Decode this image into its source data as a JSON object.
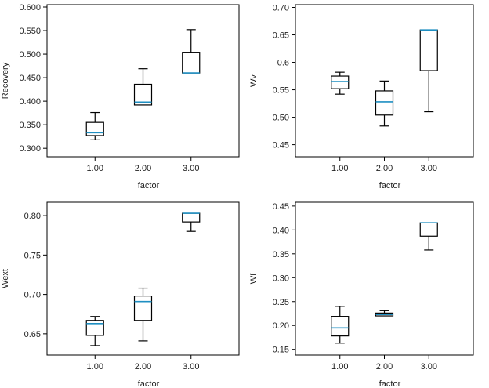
{
  "colors": {
    "median": "#1f8fc2",
    "frame": "#000000",
    "whisker": "#000000",
    "text": "#222222"
  },
  "chart_data": [
    {
      "type": "boxplot",
      "ylabel": "Recovery",
      "xlabel": "factor",
      "categories": [
        "1.00",
        "2.00",
        "3.00"
      ],
      "ylim": [
        0.282,
        0.605
      ],
      "yticks": [
        0.3,
        0.35,
        0.4,
        0.45,
        0.5,
        0.55,
        0.6
      ],
      "ytick_labels": [
        "0.300",
        "0.350",
        "0.400",
        "0.450",
        "0.500",
        "0.550",
        "0.600"
      ],
      "boxes": [
        {
          "min": 0.318,
          "q1": 0.327,
          "median": 0.333,
          "q3": 0.355,
          "max": 0.376
        },
        {
          "min": 0.392,
          "q1": 0.392,
          "median": 0.398,
          "q3": 0.436,
          "max": 0.469
        },
        {
          "min": 0.46,
          "q1": 0.46,
          "median": 0.46,
          "q3": 0.504,
          "max": 0.552
        }
      ]
    },
    {
      "type": "boxplot",
      "ylabel": "Wv",
      "xlabel": "factor",
      "categories": [
        "1.00",
        "2.00",
        "3.00"
      ],
      "ylim": [
        0.428,
        0.705
      ],
      "yticks": [
        0.45,
        0.5,
        0.55,
        0.6,
        0.65,
        0.7
      ],
      "ytick_labels": [
        "0.45",
        "0.50",
        "0.55",
        "0.6",
        "0.65",
        "0.70"
      ],
      "boxes": [
        {
          "min": 0.542,
          "q1": 0.552,
          "median": 0.565,
          "q3": 0.575,
          "max": 0.582
        },
        {
          "min": 0.484,
          "q1": 0.504,
          "median": 0.528,
          "q3": 0.548,
          "max": 0.566
        },
        {
          "min": 0.51,
          "q1": 0.585,
          "median": 0.659,
          "q3": 0.659,
          "max": 0.659
        }
      ]
    },
    {
      "type": "boxplot",
      "ylabel": "Wext",
      "xlabel": "factor",
      "categories": [
        "1.00",
        "2.00",
        "3.00"
      ],
      "ylim": [
        0.623,
        0.817
      ],
      "yticks": [
        0.65,
        0.7,
        0.75,
        0.8
      ],
      "ytick_labels": [
        "0.65",
        "0.70",
        "0.75",
        "0.80"
      ],
      "boxes": [
        {
          "min": 0.635,
          "q1": 0.648,
          "median": 0.663,
          "q3": 0.667,
          "max": 0.672
        },
        {
          "min": 0.641,
          "q1": 0.667,
          "median": 0.691,
          "q3": 0.698,
          "max": 0.708
        },
        {
          "min": 0.78,
          "q1": 0.792,
          "median": 0.803,
          "q3": 0.803,
          "max": 0.803
        }
      ]
    },
    {
      "type": "boxplot",
      "ylabel": "Wf",
      "xlabel": "factor",
      "categories": [
        "1.00",
        "2.00",
        "3.00"
      ],
      "ylim": [
        0.138,
        0.458
      ],
      "yticks": [
        0.15,
        0.2,
        0.25,
        0.3,
        0.35,
        0.4,
        0.45
      ],
      "ytick_labels": [
        "0.15",
        "0.20",
        "0.25",
        "0.30",
        "0.35",
        "0.40",
        "0.45"
      ],
      "boxes": [
        {
          "min": 0.163,
          "q1": 0.178,
          "median": 0.195,
          "q3": 0.219,
          "max": 0.24
        },
        {
          "min": 0.22,
          "q1": 0.22,
          "median": 0.223,
          "q3": 0.226,
          "max": 0.231
        },
        {
          "min": 0.358,
          "q1": 0.387,
          "median": 0.415,
          "q3": 0.415,
          "max": 0.415
        }
      ]
    }
  ]
}
